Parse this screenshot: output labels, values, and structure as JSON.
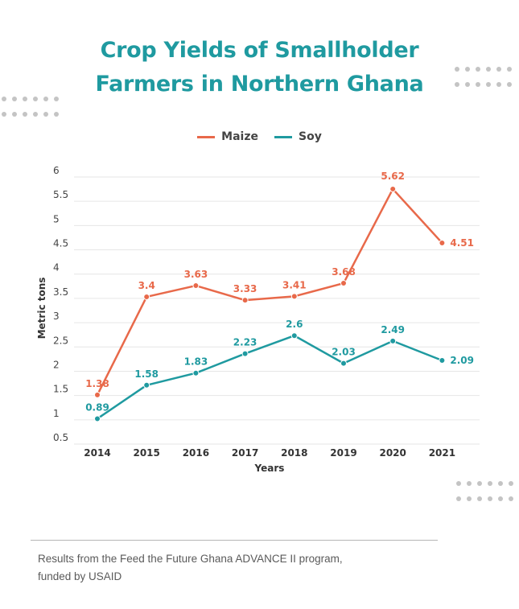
{
  "title_line1": "Crop Yields of Smallholder",
  "title_line2": "Farmers in Northern Ghana",
  "footer_text": "Results from the Feed the Future Ghana ADVANCE II program, funded by USAID",
  "colors": {
    "maize": "#e8694a",
    "soy": "#1f9aa0",
    "title": "#1f9aa0",
    "grid": "#e6e6e6",
    "text": "#444444"
  },
  "chart_data": {
    "type": "line",
    "title": "Crop Yields of Smallholder Farmers in Northern Ghana",
    "xlabel": "Years",
    "ylabel": "Metric tons",
    "categories": [
      "2014",
      "2015",
      "2016",
      "2017",
      "2018",
      "2019",
      "2020",
      "2021"
    ],
    "ylim": [
      0.5,
      6
    ],
    "yticks": [
      "0.5",
      "1",
      "1.5",
      "2",
      "2.5",
      "3",
      "3.5",
      "4",
      "4.5",
      "5",
      "5.5",
      "6"
    ],
    "legend_position": "top-center",
    "series": [
      {
        "name": "Maize",
        "values": [
          1.38,
          3.4,
          3.63,
          3.33,
          3.41,
          3.68,
          5.62,
          4.51
        ],
        "labels": [
          "1.38",
          "3.4",
          "3.63",
          "3.33",
          "3.41",
          "3.68",
          "5.62",
          "4.51"
        ]
      },
      {
        "name": "Soy",
        "values": [
          0.89,
          1.58,
          1.83,
          2.23,
          2.6,
          2.03,
          2.49,
          2.09
        ],
        "labels": [
          "0.89",
          "1.58",
          "1.83",
          "2.23",
          "2.6",
          "2.03",
          "2.49",
          "2.09"
        ]
      }
    ]
  }
}
